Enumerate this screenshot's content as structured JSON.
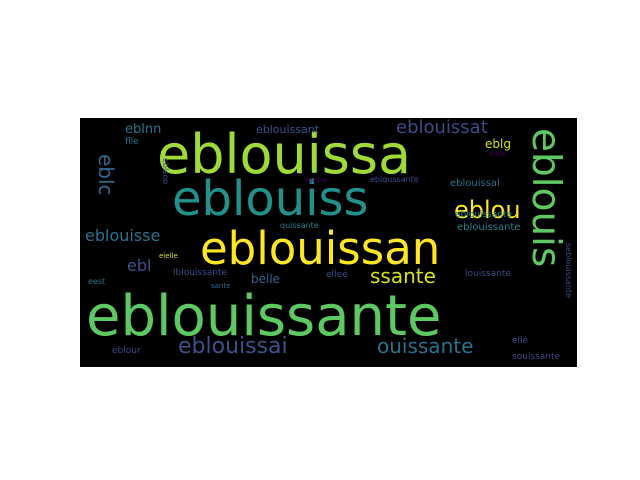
{
  "cloud": {
    "background": "#000000",
    "words": [
      {
        "text": "eblouissante",
        "color": "#5ec962"
      },
      {
        "text": "eblouissa",
        "color": "#a0da39"
      },
      {
        "text": "eblouiss",
        "color": "#21918c"
      },
      {
        "text": "eblouissan",
        "color": "#fde725"
      },
      {
        "text": "eblouis",
        "color": "#5ec962"
      },
      {
        "text": "eblou",
        "color": "#fde725"
      },
      {
        "text": "eblouissai",
        "color": "#3b528b"
      },
      {
        "text": "ouissante",
        "color": "#2c728e"
      },
      {
        "text": "ssante",
        "color": "#d8e219"
      },
      {
        "text": "eblouissat",
        "color": "#3e4a89"
      },
      {
        "text": "eblc",
        "color": "#31688e"
      },
      {
        "text": "eblouisse",
        "color": "#2c728e"
      },
      {
        "text": "ebl",
        "color": "#3b528b"
      },
      {
        "text": "eblnn",
        "color": "#2c728e"
      },
      {
        "text": "eblouissant",
        "color": "#3b528b"
      },
      {
        "text": "eblg",
        "color": "#d8e219"
      },
      {
        "text": "eblouissal",
        "color": "#2c728e"
      },
      {
        "text": "eblouissante",
        "color": "#26828e"
      },
      {
        "text": "eblqussante",
        "color": "#3e4a89"
      },
      {
        "text": "belle",
        "color": "#31688e"
      },
      {
        "text": "elleé",
        "color": "#3e4a89"
      },
      {
        "text": "louissante",
        "color": "#3e4a89"
      },
      {
        "text": "lblouissante",
        "color": "#3e4a89"
      },
      {
        "text": "quissante",
        "color": "#26828e"
      },
      {
        "text": "feelle",
        "color": "#440154"
      },
      {
        "text": "flle",
        "color": "#2c728e"
      },
      {
        "text": "eblsoo",
        "color": "#3b528b"
      },
      {
        "text": "eiele",
        "color": "#440154"
      },
      {
        "text": "eielle",
        "color": "#d8e219"
      },
      {
        "text": "eest",
        "color": "#2c728e"
      },
      {
        "text": "sante",
        "color": "#31688e"
      },
      {
        "text": "eblour",
        "color": "#3e4a89"
      },
      {
        "text": "ellé",
        "color": "#3e4a89"
      },
      {
        "text": "souissante",
        "color": "#3e4a89"
      },
      {
        "text": "seblouissante",
        "color": "#3e4a89"
      },
      {
        "text": "eblouissante",
        "color": "#26828e"
      }
    ]
  }
}
